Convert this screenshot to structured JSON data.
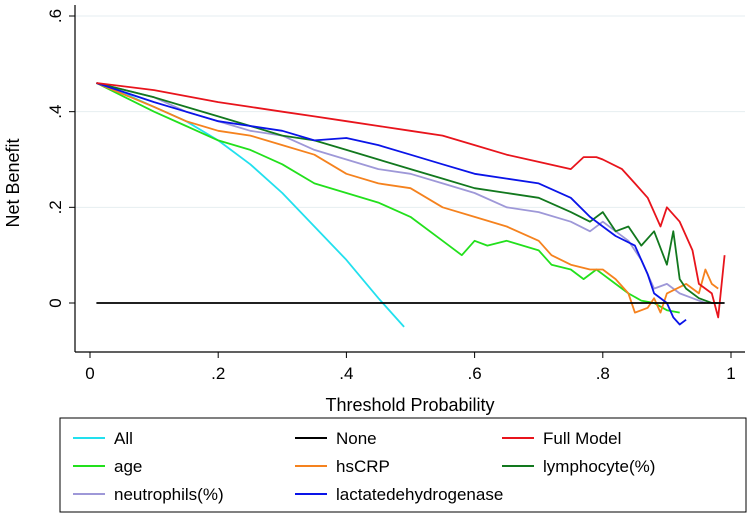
{
  "chart_data": {
    "type": "line",
    "title": "",
    "xlabel": "Threshold Probability",
    "ylabel": "Net Benefit",
    "xlim": [
      0,
      1
    ],
    "ylim": [
      -0.05,
      0.6
    ],
    "x_ticks": [
      0,
      0.2,
      0.4,
      0.6,
      0.8,
      1
    ],
    "x_tick_labels": [
      "0",
      ".2",
      ".4",
      ".6",
      ".8",
      "1"
    ],
    "y_ticks": [
      0,
      0.2,
      0.4,
      0.6
    ],
    "y_tick_labels": [
      "0",
      ".2",
      ".4",
      ".6"
    ],
    "grid": "horizontal",
    "legend_position": "bottom",
    "series": [
      {
        "name": "All",
        "color": "#22e0ee",
        "x": [
          0.01,
          0.05,
          0.1,
          0.15,
          0.2,
          0.25,
          0.3,
          0.35,
          0.4,
          0.45,
          0.49
        ],
        "y": [
          0.46,
          0.44,
          0.41,
          0.38,
          0.34,
          0.29,
          0.23,
          0.16,
          0.09,
          0.01,
          -0.05
        ]
      },
      {
        "name": "None",
        "color": "#000000",
        "x": [
          0.01,
          0.99
        ],
        "y": [
          0,
          0
        ]
      },
      {
        "name": "Full Model",
        "color": "#e8141c",
        "x": [
          0.01,
          0.1,
          0.2,
          0.25,
          0.3,
          0.35,
          0.4,
          0.45,
          0.5,
          0.55,
          0.6,
          0.65,
          0.7,
          0.75,
          0.77,
          0.79,
          0.8,
          0.83,
          0.85,
          0.87,
          0.89,
          0.9,
          0.92,
          0.94,
          0.95,
          0.97,
          0.98,
          0.99
        ],
        "y": [
          0.46,
          0.445,
          0.42,
          0.41,
          0.4,
          0.39,
          0.38,
          0.37,
          0.36,
          0.35,
          0.33,
          0.31,
          0.295,
          0.28,
          0.305,
          0.305,
          0.3,
          0.28,
          0.25,
          0.22,
          0.16,
          0.2,
          0.17,
          0.11,
          0.04,
          0.02,
          -0.03,
          0.1
        ]
      },
      {
        "name": "age",
        "color": "#22e01c",
        "x": [
          0.01,
          0.1,
          0.15,
          0.2,
          0.25,
          0.3,
          0.35,
          0.4,
          0.45,
          0.5,
          0.55,
          0.58,
          0.6,
          0.62,
          0.65,
          0.7,
          0.72,
          0.75,
          0.77,
          0.79,
          0.8,
          0.82,
          0.84,
          0.86,
          0.88,
          0.9,
          0.92
        ],
        "y": [
          0.46,
          0.4,
          0.37,
          0.34,
          0.32,
          0.29,
          0.25,
          0.23,
          0.21,
          0.18,
          0.13,
          0.1,
          0.13,
          0.12,
          0.13,
          0.11,
          0.08,
          0.07,
          0.05,
          0.07,
          0.06,
          0.04,
          0.02,
          0.005,
          0.0,
          -0.015,
          -0.02
        ]
      },
      {
        "name": "hsCRP",
        "color": "#f5821e",
        "x": [
          0.01,
          0.1,
          0.15,
          0.2,
          0.25,
          0.3,
          0.35,
          0.4,
          0.45,
          0.5,
          0.55,
          0.6,
          0.65,
          0.7,
          0.72,
          0.75,
          0.78,
          0.8,
          0.82,
          0.84,
          0.85,
          0.87,
          0.88,
          0.89,
          0.9,
          0.93,
          0.95,
          0.96,
          0.97,
          0.98
        ],
        "y": [
          0.46,
          0.41,
          0.38,
          0.36,
          0.35,
          0.33,
          0.31,
          0.27,
          0.25,
          0.24,
          0.2,
          0.18,
          0.16,
          0.13,
          0.1,
          0.08,
          0.07,
          0.07,
          0.05,
          0.02,
          -0.02,
          -0.01,
          0.01,
          -0.02,
          0.02,
          0.04,
          0.02,
          0.07,
          0.04,
          0.03
        ]
      },
      {
        "name": "lymphocyte(%)",
        "color": "#12781e",
        "x": [
          0.01,
          0.1,
          0.15,
          0.2,
          0.25,
          0.3,
          0.35,
          0.4,
          0.45,
          0.5,
          0.55,
          0.6,
          0.65,
          0.7,
          0.75,
          0.78,
          0.8,
          0.82,
          0.84,
          0.86,
          0.88,
          0.9,
          0.91,
          0.92,
          0.93,
          0.95,
          0.97,
          0.98
        ],
        "y": [
          0.46,
          0.43,
          0.41,
          0.39,
          0.37,
          0.35,
          0.34,
          0.32,
          0.3,
          0.28,
          0.26,
          0.24,
          0.23,
          0.22,
          0.19,
          0.17,
          0.19,
          0.15,
          0.16,
          0.12,
          0.15,
          0.08,
          0.15,
          0.05,
          0.03,
          0.01,
          0.0,
          0.0
        ]
      },
      {
        "name": "neutrophils(%)",
        "color": "#9e98d8",
        "x": [
          0.01,
          0.1,
          0.15,
          0.2,
          0.25,
          0.3,
          0.35,
          0.4,
          0.45,
          0.5,
          0.55,
          0.6,
          0.65,
          0.7,
          0.75,
          0.78,
          0.8,
          0.82,
          0.84,
          0.86,
          0.87,
          0.88,
          0.9,
          0.92,
          0.94,
          0.96
        ],
        "y": [
          0.46,
          0.43,
          0.4,
          0.38,
          0.36,
          0.35,
          0.32,
          0.3,
          0.28,
          0.27,
          0.25,
          0.23,
          0.2,
          0.19,
          0.17,
          0.15,
          0.17,
          0.15,
          0.13,
          0.09,
          0.06,
          0.03,
          0.04,
          0.02,
          0.01,
          0.0
        ]
      },
      {
        "name": "lactatedehydrogenase",
        "color": "#0a14e8",
        "x": [
          0.01,
          0.1,
          0.15,
          0.2,
          0.25,
          0.3,
          0.35,
          0.4,
          0.45,
          0.5,
          0.55,
          0.6,
          0.65,
          0.7,
          0.75,
          0.78,
          0.8,
          0.82,
          0.85,
          0.87,
          0.88,
          0.9,
          0.91,
          0.92,
          0.93
        ],
        "y": [
          0.46,
          0.42,
          0.4,
          0.38,
          0.37,
          0.36,
          0.34,
          0.345,
          0.33,
          0.31,
          0.29,
          0.27,
          0.26,
          0.25,
          0.22,
          0.18,
          0.16,
          0.14,
          0.12,
          0.06,
          0.02,
          0.0,
          -0.03,
          -0.045,
          -0.035
        ]
      }
    ]
  },
  "legend": {
    "items": [
      {
        "label": "All",
        "color": "#22e0ee"
      },
      {
        "label": "None",
        "color": "#000000"
      },
      {
        "label": "Full Model",
        "color": "#e8141c"
      },
      {
        "label": "age",
        "color": "#22e01c"
      },
      {
        "label": "hsCRP",
        "color": "#f5821e"
      },
      {
        "label": "lymphocyte(%)",
        "color": "#12781e"
      },
      {
        "label": "neutrophils(%)",
        "color": "#9e98d8"
      },
      {
        "label": "lactatedehydrogenase",
        "color": "#0a14e8"
      }
    ]
  }
}
